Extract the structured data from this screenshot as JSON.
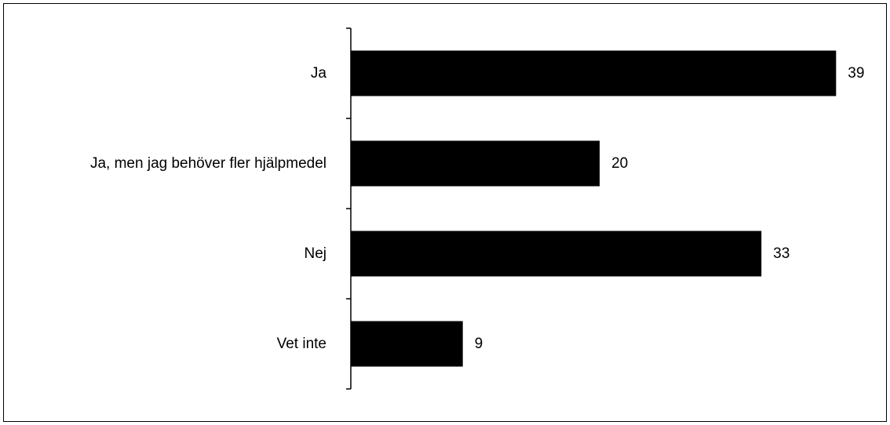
{
  "chart_data": {
    "type": "bar",
    "orientation": "horizontal",
    "categories": [
      "Ja",
      "Ja, men jag behöver fler hjälpmedel",
      "Nej",
      "Vet inte"
    ],
    "values": [
      39,
      20,
      33,
      9
    ],
    "data_labels": [
      "39",
      "20",
      "33",
      "9"
    ],
    "title": "",
    "xlabel": "",
    "ylabel": "",
    "xlim": [
      0,
      41
    ],
    "grid": false,
    "legend": "none",
    "bar_color": "#000000"
  }
}
